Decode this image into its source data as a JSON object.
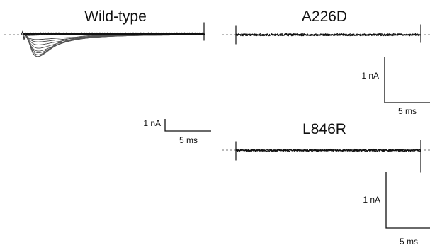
{
  "chart_data": [
    {
      "type": "line",
      "title": "Wild-type",
      "xlabel": "",
      "ylabel": "",
      "scale_bar": {
        "y_value": 1,
        "y_unit": "nA",
        "y_label": "1 nA",
        "x_value": 5,
        "x_unit": "ms",
        "x_label": "5 ms"
      },
      "series": [
        {
          "peak_nA": -0.1,
          "time_to_peak_ms": 0.4,
          "decay_tau_ms": 1.5
        },
        {
          "peak_nA": -0.5,
          "time_to_peak_ms": 0.8,
          "decay_tau_ms": 6.0
        },
        {
          "peak_nA": -0.8,
          "time_to_peak_ms": 1.0,
          "decay_tau_ms": 5.0
        },
        {
          "peak_nA": -1.2,
          "time_to_peak_ms": 1.1,
          "decay_tau_ms": 4.2
        },
        {
          "peak_nA": -1.7,
          "time_to_peak_ms": 1.2,
          "decay_tau_ms": 3.5
        },
        {
          "peak_nA": -2.2,
          "time_to_peak_ms": 1.3,
          "decay_tau_ms": 3.0
        },
        {
          "peak_nA": -2.6,
          "time_to_peak_ms": 1.4,
          "decay_tau_ms": 2.6
        },
        {
          "peak_nA": -3.1,
          "time_to_peak_ms": 1.5,
          "decay_tau_ms": 2.2
        },
        {
          "peak_nA": -3.6,
          "time_to_peak_ms": 1.6,
          "decay_tau_ms": 1.9
        },
        {
          "peak_nA": -3.9,
          "time_to_peak_ms": 1.7,
          "decay_tau_ms": 1.6
        }
      ]
    },
    {
      "type": "line",
      "title": "A226D",
      "xlabel": "",
      "ylabel": "",
      "scale_bar": {
        "y_value": 1,
        "y_unit": "nA",
        "y_label": "1 nA",
        "x_value": 5,
        "x_unit": "ms",
        "x_label": "5 ms"
      },
      "series": [
        {
          "peak_nA": 0,
          "noise_nA": 0.03
        }
      ]
    },
    {
      "type": "line",
      "title": "L846R",
      "xlabel": "",
      "ylabel": "",
      "scale_bar": {
        "y_value": 1,
        "y_unit": "nA",
        "y_label": "1 nA",
        "x_value": 5,
        "x_unit": "ms",
        "x_label": "5 ms"
      },
      "series": [
        {
          "peak_nA": 0,
          "noise_nA": 0.03
        }
      ]
    }
  ]
}
